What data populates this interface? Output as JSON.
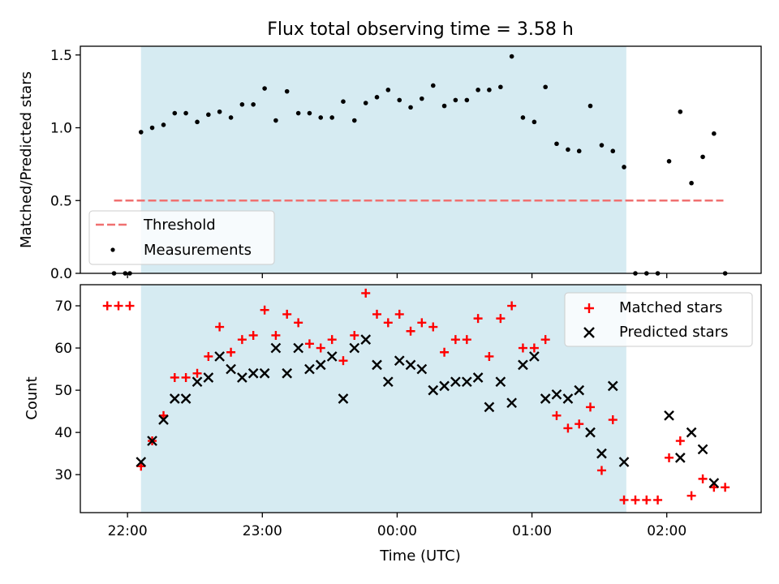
{
  "figure_title": "Flux total observing time = 3.58 h",
  "chart_data": [
    {
      "type": "scatter",
      "ylabel": "Matched/Predicted stars",
      "xlim": [
        -0.35,
        4.7
      ],
      "ylim": [
        0,
        1.56
      ],
      "y_ticks": [
        "0.0",
        "0.5",
        "1.0",
        "1.5"
      ],
      "y_tick_values": [
        0,
        0.5,
        1.0,
        1.5
      ],
      "shaded_span": {
        "x0": 0.1,
        "x1": 3.7,
        "color": "#add8e6"
      },
      "threshold": {
        "name": "Threshold",
        "y": 0.5,
        "x0": -0.1,
        "x1": 4.42,
        "color": "#f07070"
      },
      "legend": {
        "position": "lower-left",
        "entries": [
          "Threshold",
          "Measurements"
        ]
      },
      "series": [
        {
          "name": "Measurements",
          "marker": "dot",
          "color": "#000000",
          "x": [
            -0.1,
            -0.017,
            0.017,
            0.1,
            0.183,
            0.267,
            0.35,
            0.433,
            0.517,
            0.6,
            0.683,
            0.767,
            0.85,
            0.933,
            1.017,
            1.1,
            1.183,
            1.267,
            1.35,
            1.433,
            1.517,
            1.6,
            1.683,
            1.767,
            1.85,
            1.933,
            2.017,
            2.1,
            2.183,
            2.267,
            2.35,
            2.433,
            2.517,
            2.6,
            2.683,
            2.767,
            2.85,
            2.933,
            3.017,
            3.1,
            3.183,
            3.267,
            3.35,
            3.433,
            3.517,
            3.6,
            3.683,
            3.767,
            3.85,
            3.933,
            4.017,
            4.1,
            4.183,
            4.267,
            4.35,
            4.433
          ],
          "y": [
            0,
            0,
            0,
            0.97,
            1.0,
            1.02,
            1.1,
            1.1,
            1.04,
            1.09,
            1.11,
            1.07,
            1.16,
            1.16,
            1.27,
            1.05,
            1.25,
            1.1,
            1.1,
            1.07,
            1.07,
            1.18,
            1.05,
            1.17,
            1.21,
            1.26,
            1.19,
            1.14,
            1.2,
            1.29,
            1.15,
            1.19,
            1.19,
            1.26,
            1.26,
            1.28,
            1.49,
            1.07,
            1.04,
            1.28,
            0.89,
            0.85,
            0.84,
            1.15,
            0.88,
            0.84,
            0.73,
            0,
            0,
            0,
            0.77,
            1.11,
            0.62,
            0.8,
            0.96,
            0
          ]
        }
      ]
    },
    {
      "type": "scatter",
      "xlabel": "Time (UTC)",
      "ylabel": "Count",
      "xlim": [
        -0.35,
        4.7
      ],
      "ylim": [
        21,
        75
      ],
      "y_ticks": [
        "30",
        "40",
        "50",
        "60",
        "70"
      ],
      "y_tick_values": [
        30,
        40,
        50,
        60,
        70
      ],
      "x_ticks": [
        "22:00",
        "23:00",
        "00:00",
        "01:00",
        "02:00"
      ],
      "x_tick_values": [
        0,
        1,
        2,
        3,
        4
      ],
      "shaded_span": {
        "x0": 0.1,
        "x1": 3.7,
        "color": "#add8e6"
      },
      "legend": {
        "position": "top-right",
        "entries": [
          "Matched stars",
          "Predicted stars"
        ]
      },
      "series": [
        {
          "name": "Matched stars",
          "marker": "plus",
          "color": "#ff0000",
          "x": [
            -0.15,
            -0.067,
            0.017,
            0.1,
            0.183,
            0.267,
            0.35,
            0.433,
            0.517,
            0.6,
            0.683,
            0.767,
            0.85,
            0.933,
            1.017,
            1.1,
            1.183,
            1.267,
            1.35,
            1.433,
            1.517,
            1.6,
            1.683,
            1.767,
            1.85,
            1.933,
            2.017,
            2.1,
            2.183,
            2.267,
            2.35,
            2.433,
            2.517,
            2.6,
            2.683,
            2.767,
            2.85,
            2.933,
            3.017,
            3.1,
            3.183,
            3.267,
            3.35,
            3.433,
            3.517,
            3.6,
            3.683,
            3.767,
            3.85,
            3.933,
            4.017,
            4.1,
            4.183,
            4.267,
            4.35,
            4.433
          ],
          "y": [
            70,
            70,
            70,
            32,
            38,
            44,
            53,
            53,
            54,
            58,
            65,
            59,
            62,
            63,
            69,
            63,
            68,
            66,
            61,
            60,
            62,
            57,
            63,
            73,
            68,
            66,
            68,
            64,
            66,
            65,
            59,
            62,
            62,
            67,
            58,
            67,
            70,
            60,
            60,
            62,
            44,
            41,
            42,
            46,
            31,
            43,
            24,
            24,
            24,
            24,
            34,
            38,
            25,
            29,
            27,
            27
          ]
        },
        {
          "name": "Predicted stars",
          "marker": "x",
          "color": "#000000",
          "x": [
            0.1,
            0.183,
            0.267,
            0.35,
            0.433,
            0.517,
            0.6,
            0.683,
            0.767,
            0.85,
            0.933,
            1.017,
            1.1,
            1.183,
            1.267,
            1.35,
            1.433,
            1.517,
            1.6,
            1.683,
            1.767,
            1.85,
            1.933,
            2.017,
            2.1,
            2.183,
            2.267,
            2.35,
            2.433,
            2.517,
            2.6,
            2.683,
            2.767,
            2.85,
            2.933,
            3.017,
            3.1,
            3.183,
            3.267,
            3.35,
            3.433,
            3.517,
            3.6,
            3.683,
            4.017,
            4.1,
            4.183,
            4.267,
            4.35
          ],
          "y": [
            33,
            38,
            43,
            48,
            48,
            52,
            53,
            58,
            55,
            53,
            54,
            54,
            60,
            54,
            60,
            55,
            56,
            58,
            48,
            60,
            62,
            56,
            52,
            57,
            56,
            55,
            50,
            51,
            52,
            52,
            53,
            46,
            52,
            47,
            56,
            58,
            48,
            49,
            48,
            50,
            40,
            35,
            51,
            33,
            44,
            34,
            40,
            36,
            28
          ]
        }
      ]
    }
  ]
}
